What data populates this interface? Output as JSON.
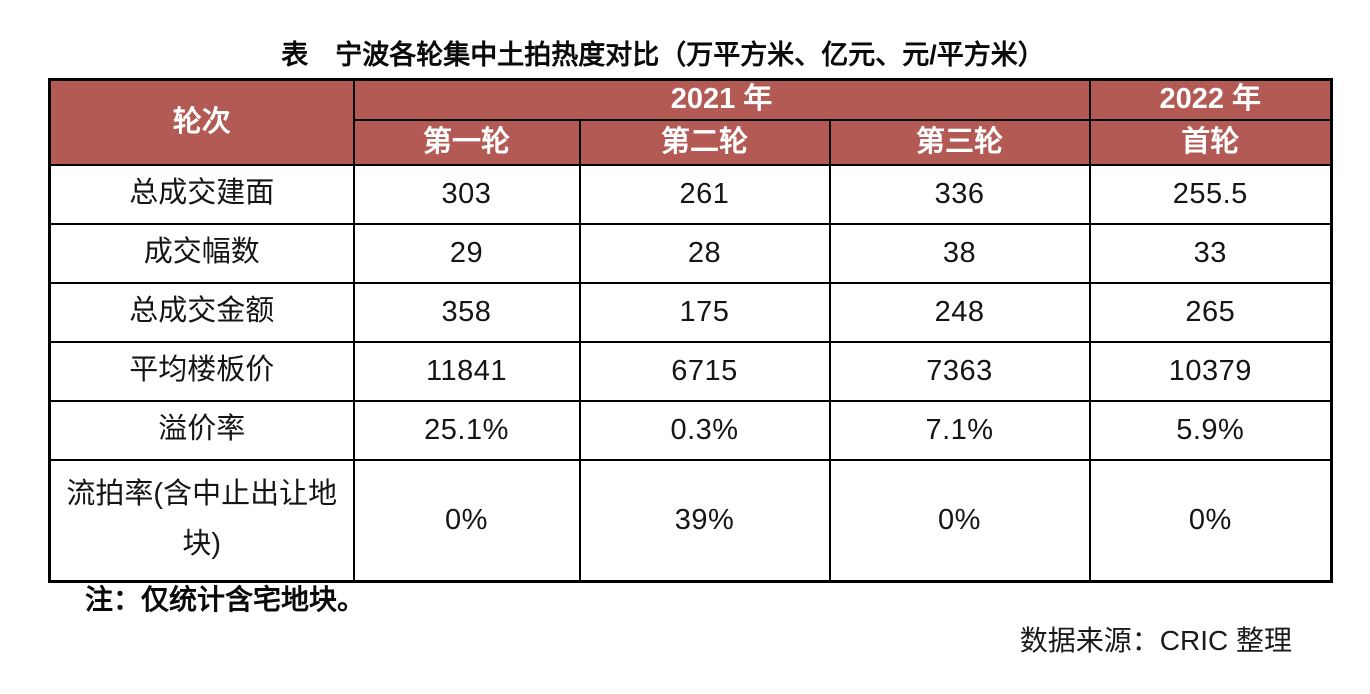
{
  "title": "表　宁波各轮集中土拍热度对比（万平方米、亿元、元/平方米）",
  "table": {
    "corner_header": "轮次",
    "year_groups": [
      {
        "label": "2021 年",
        "colspan": 3
      },
      {
        "label": "2022 年",
        "colspan": 1
      }
    ],
    "round_headers": [
      "第一轮",
      "第二轮",
      "第三轮",
      "首轮"
    ],
    "rows": [
      {
        "label": "总成交建面",
        "values": [
          "303",
          "261",
          "336",
          "255.5"
        ]
      },
      {
        "label": "成交幅数",
        "values": [
          "29",
          "28",
          "38",
          "33"
        ]
      },
      {
        "label": "总成交金额",
        "values": [
          "358",
          "175",
          "248",
          "265"
        ]
      },
      {
        "label": "平均楼板价",
        "values": [
          "11841",
          "6715",
          "7363",
          "10379"
        ]
      },
      {
        "label": "溢价率",
        "values": [
          "25.1%",
          "0.3%",
          "7.1%",
          "5.9%"
        ]
      },
      {
        "label": "流拍率(含中止出让地块)",
        "values": [
          "0%",
          "39%",
          "0%",
          "0%"
        ]
      }
    ]
  },
  "note": "注：仅统计含宅地块。",
  "source": "数据来源：CRIC 整理",
  "colors": {
    "header_bg": "#B25A53",
    "header_text": "#FFFFFF",
    "border": "#000000",
    "body_text": "#151515",
    "page_bg": "#FFFFFF"
  },
  "chart_data": {
    "type": "table",
    "title": "表 宁波各轮集中土拍热度对比（万平方米、亿元、元/平方米）",
    "columns": [
      "轮次",
      "2021年-第一轮",
      "2021年-第二轮",
      "2021年-第三轮",
      "2022年-首轮"
    ],
    "rows": [
      [
        "总成交建面",
        303,
        261,
        336,
        255.5
      ],
      [
        "成交幅数",
        29,
        28,
        38,
        33
      ],
      [
        "总成交金额",
        358,
        175,
        248,
        265
      ],
      [
        "平均楼板价",
        11841,
        6715,
        7363,
        10379
      ],
      [
        "溢价率",
        "25.1%",
        "0.3%",
        "7.1%",
        "5.9%"
      ],
      [
        "流拍率(含中止出让地块)",
        "0%",
        "39%",
        "0%",
        "0%"
      ]
    ]
  }
}
